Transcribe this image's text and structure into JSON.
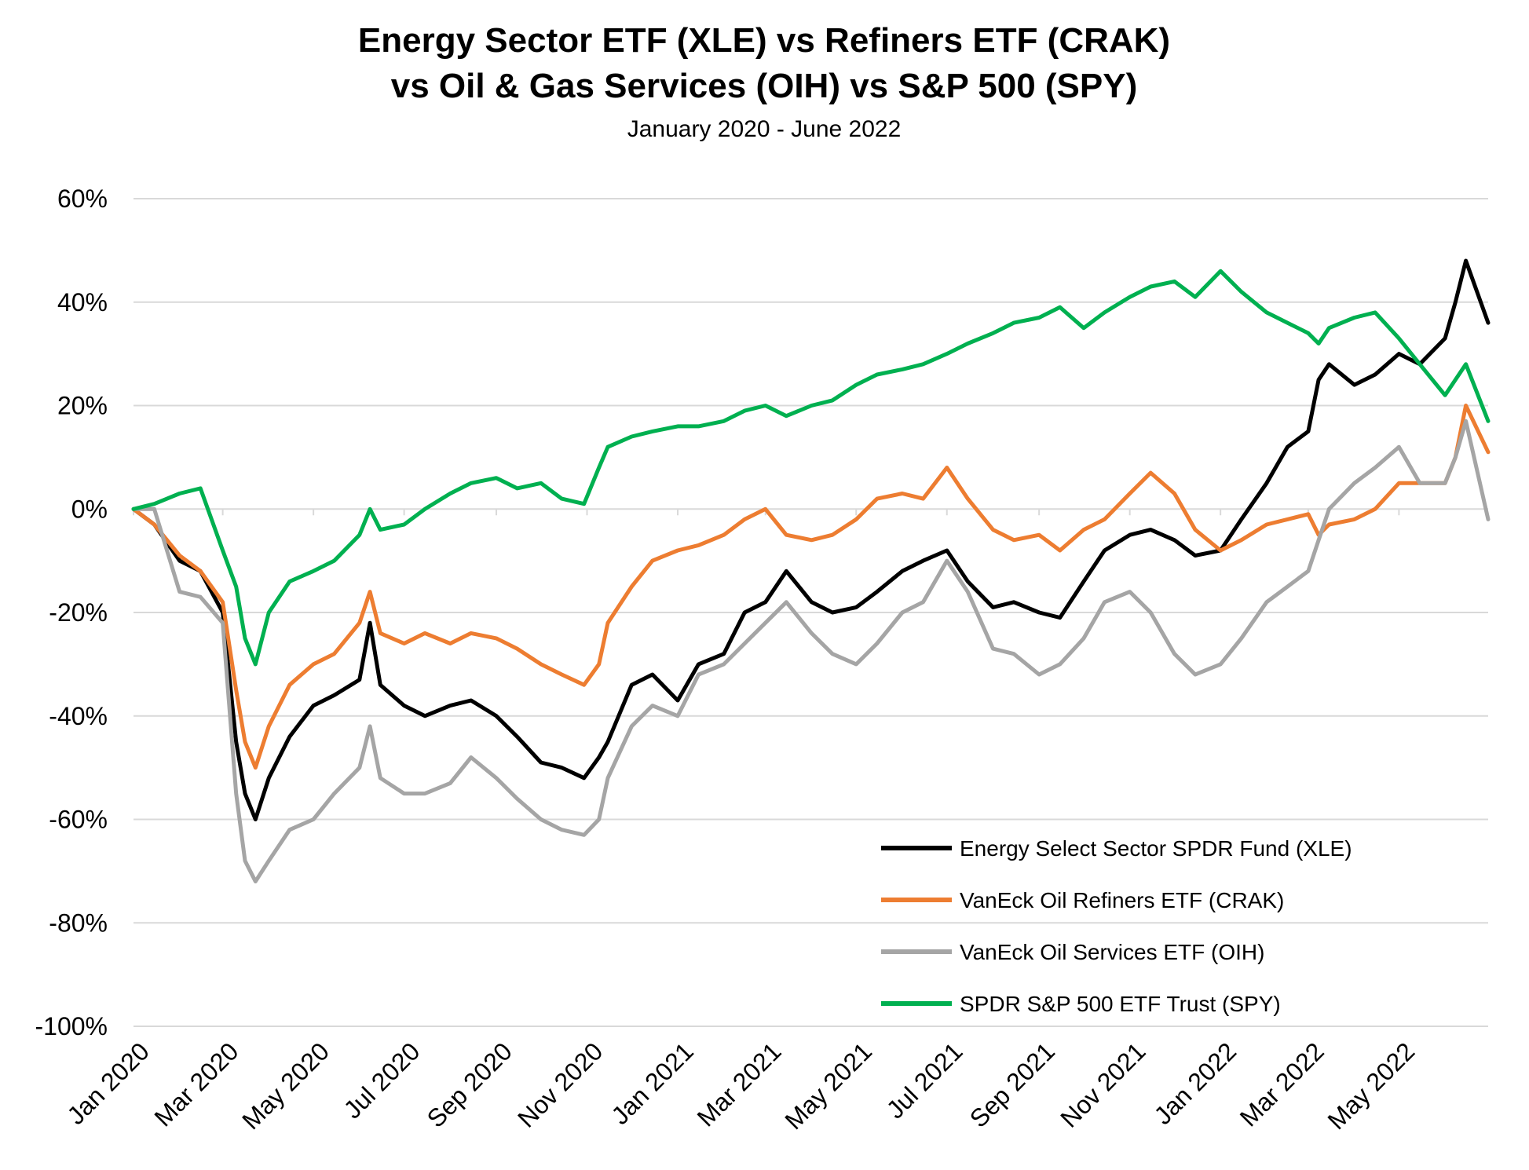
{
  "chart_data": {
    "type": "line",
    "title_line1": "Energy Sector ETF (XLE) vs Refiners ETF (CRAK)",
    "title_line2": "vs Oil & Gas Services (OIH) vs S&P 500 (SPY)",
    "subtitle": "January 2020 - June 2022",
    "y_unit": "%",
    "ylim": [
      -100,
      60
    ],
    "yticks": [
      60,
      40,
      20,
      0,
      -20,
      -40,
      -60,
      -80,
      -100
    ],
    "ytick_labels": [
      "60%",
      "40%",
      "20%",
      "0%",
      "-20%",
      "-40%",
      "-60%",
      "-80%",
      "-100%"
    ],
    "xlim": [
      "2020-01-01",
      "2022-06-30"
    ],
    "xticks": [
      "2020-01-01",
      "2020-03-01",
      "2020-05-01",
      "2020-07-01",
      "2020-09-01",
      "2020-11-01",
      "2021-01-01",
      "2021-03-01",
      "2021-05-01",
      "2021-07-01",
      "2021-09-01",
      "2021-11-01",
      "2022-01-01",
      "2022-03-01",
      "2022-05-01"
    ],
    "xtick_labels": [
      "Jan 2020",
      "Mar 2020",
      "May 2020",
      "Jul 2020",
      "Sep 2020",
      "Nov 2020",
      "Jan 2021",
      "Mar 2021",
      "May 2021",
      "Jul 2021",
      "Sep 2021",
      "Nov 2021",
      "Jan 2022",
      "Mar 2022",
      "May 2022"
    ],
    "grid": "horizontal",
    "legend_position": "bottom-right",
    "x": [
      "2020-01-01",
      "2020-01-15",
      "2020-02-01",
      "2020-02-15",
      "2020-03-01",
      "2020-03-10",
      "2020-03-16",
      "2020-03-23",
      "2020-04-01",
      "2020-04-15",
      "2020-05-01",
      "2020-05-15",
      "2020-06-01",
      "2020-06-08",
      "2020-06-15",
      "2020-07-01",
      "2020-07-15",
      "2020-08-01",
      "2020-08-15",
      "2020-09-01",
      "2020-09-15",
      "2020-10-01",
      "2020-10-15",
      "2020-10-30",
      "2020-11-09",
      "2020-11-15",
      "2020-12-01",
      "2020-12-15",
      "2021-01-01",
      "2021-01-15",
      "2021-02-01",
      "2021-02-15",
      "2021-03-01",
      "2021-03-15",
      "2021-04-01",
      "2021-04-15",
      "2021-05-01",
      "2021-05-15",
      "2021-06-01",
      "2021-06-15",
      "2021-07-01",
      "2021-07-15",
      "2021-08-01",
      "2021-08-15",
      "2021-09-01",
      "2021-09-15",
      "2021-10-01",
      "2021-10-15",
      "2021-11-01",
      "2021-11-15",
      "2021-12-01",
      "2021-12-15",
      "2022-01-01",
      "2022-01-15",
      "2022-02-01",
      "2022-02-15",
      "2022-03-01",
      "2022-03-08",
      "2022-03-15",
      "2022-04-01",
      "2022-04-15",
      "2022-05-01",
      "2022-05-15",
      "2022-06-01",
      "2022-06-08",
      "2022-06-15",
      "2022-06-30"
    ],
    "series": [
      {
        "name": "Energy Select Sector SPDR Fund (XLE)",
        "color": "#000000",
        "values": [
          0,
          -3,
          -10,
          -12,
          -20,
          -45,
          -55,
          -60,
          -52,
          -44,
          -38,
          -36,
          -33,
          -22,
          -34,
          -38,
          -40,
          -38,
          -37,
          -40,
          -44,
          -49,
          -50,
          -52,
          -48,
          -45,
          -34,
          -32,
          -37,
          -30,
          -28,
          -20,
          -18,
          -12,
          -18,
          -20,
          -19,
          -16,
          -12,
          -10,
          -8,
          -14,
          -19,
          -18,
          -20,
          -21,
          -14,
          -8,
          -5,
          -4,
          -6,
          -9,
          -8,
          -2,
          5,
          12,
          15,
          25,
          28,
          24,
          26,
          30,
          28,
          33,
          40,
          48,
          36
        ]
      },
      {
        "name": "VanEck Oil Refiners ETF (CRAK)",
        "color": "#ed7d31",
        "values": [
          0,
          -3,
          -9,
          -12,
          -18,
          -35,
          -45,
          -50,
          -42,
          -34,
          -30,
          -28,
          -22,
          -16,
          -24,
          -26,
          -24,
          -26,
          -24,
          -25,
          -27,
          -30,
          -32,
          -34,
          -30,
          -22,
          -15,
          -10,
          -8,
          -7,
          -5,
          -2,
          0,
          -5,
          -6,
          -5,
          -2,
          2,
          3,
          2,
          8,
          2,
          -4,
          -6,
          -5,
          -8,
          -4,
          -2,
          3,
          7,
          3,
          -4,
          -8,
          -6,
          -3,
          -2,
          -1,
          -5,
          -3,
          -2,
          0,
          5,
          5,
          5,
          10,
          20,
          11
        ]
      },
      {
        "name": "VanEck Oil Services ETF (OIH)",
        "color": "#a5a5a5",
        "values": [
          0,
          0,
          -16,
          -17,
          -22,
          -55,
          -68,
          -72,
          -68,
          -62,
          -60,
          -55,
          -50,
          -42,
          -52,
          -55,
          -55,
          -53,
          -48,
          -52,
          -56,
          -60,
          -62,
          -63,
          -60,
          -52,
          -42,
          -38,
          -40,
          -32,
          -30,
          -26,
          -22,
          -18,
          -24,
          -28,
          -30,
          -26,
          -20,
          -18,
          -10,
          -16,
          -27,
          -28,
          -32,
          -30,
          -25,
          -18,
          -16,
          -20,
          -28,
          -32,
          -30,
          -25,
          -18,
          -15,
          -12,
          -6,
          0,
          5,
          8,
          12,
          5,
          5,
          10,
          17,
          -2
        ]
      },
      {
        "name": "SPDR S&P 500 ETF Trust (SPY)",
        "color": "#00b050",
        "values": [
          0,
          1,
          3,
          4,
          -8,
          -15,
          -25,
          -30,
          -20,
          -14,
          -12,
          -10,
          -5,
          0,
          -4,
          -3,
          0,
          3,
          5,
          6,
          4,
          5,
          2,
          1,
          8,
          12,
          14,
          15,
          16,
          16,
          17,
          19,
          20,
          18,
          20,
          21,
          24,
          26,
          27,
          28,
          30,
          32,
          34,
          36,
          37,
          39,
          35,
          38,
          41,
          43,
          44,
          41,
          46,
          42,
          38,
          36,
          34,
          32,
          35,
          37,
          38,
          33,
          28,
          22,
          25,
          28,
          17
        ]
      }
    ]
  }
}
